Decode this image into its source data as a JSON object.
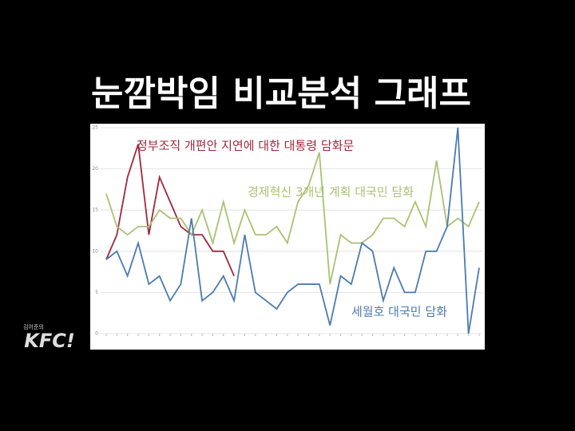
{
  "chart_data": {
    "type": "line",
    "title": "눈깜박임 비교분석 그래프",
    "categories": [
      null,
      null,
      null,
      null,
      null,
      null,
      null,
      null,
      null,
      null,
      null,
      null,
      null,
      null,
      null,
      null,
      null,
      null,
      null,
      null,
      null,
      null,
      null,
      null,
      null,
      null,
      null,
      null,
      null,
      null,
      null,
      null,
      null,
      null,
      null,
      null
    ],
    "series": [
      {
        "name": "정부조직 개편안 지연에 대한 대통령 담화문",
        "color": "#a0283c",
        "values": [
          9,
          12,
          19,
          23,
          12,
          19,
          16,
          13,
          12,
          12,
          10,
          10,
          7,
          null,
          null,
          null,
          null,
          null,
          null,
          null,
          null,
          null,
          null,
          null,
          null,
          null,
          null,
          null,
          null,
          null,
          null,
          null,
          null,
          null,
          null,
          null
        ]
      },
      {
        "name": "경제혁신 3개년 계획 대국민 담화",
        "color": "#a9c273",
        "values": [
          17,
          13,
          12,
          13,
          13,
          15,
          14,
          14,
          12,
          15,
          11,
          16,
          11,
          15,
          12,
          12,
          13,
          11,
          16,
          18,
          22,
          6,
          12,
          11,
          11,
          12,
          14,
          14,
          13,
          16,
          13,
          21,
          13,
          14,
          13,
          16
        ]
      },
      {
        "name": "세월호 대국민 담화",
        "color": "#4b7bb2",
        "values": [
          9,
          10,
          7,
          11,
          6,
          7,
          4,
          6,
          14,
          4,
          5,
          7,
          4,
          12,
          5,
          4,
          3,
          5,
          6,
          6,
          6,
          1,
          7,
          6,
          11,
          10,
          4,
          8,
          5,
          5,
          10,
          10,
          13,
          25,
          0,
          8
        ]
      }
    ],
    "ylim": [
      0,
      25
    ],
    "yticks": [
      0,
      5,
      10,
      15,
      20,
      25
    ],
    "grid": true,
    "logo_caption": "김어준의",
    "logo": "KFC!"
  }
}
